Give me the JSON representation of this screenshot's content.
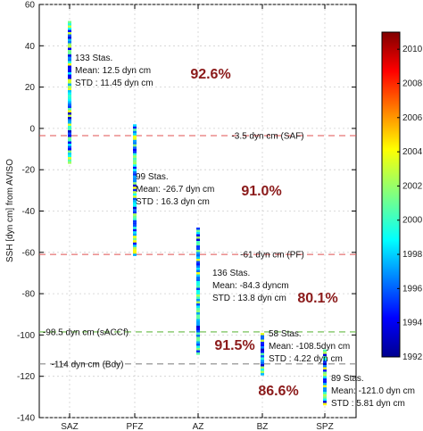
{
  "chart_data": {
    "type": "scatter",
    "ylabel": "SSH [dyn cm] from AVISO",
    "ylim": [
      -140,
      60
    ],
    "y_ticks": [
      60,
      40,
      20,
      0,
      -20,
      -40,
      -60,
      -80,
      -100,
      -120,
      -140
    ],
    "categories": [
      "SAZ",
      "PFZ",
      "AZ",
      "BZ",
      "SPZ"
    ],
    "grid": true,
    "zones": [
      {
        "name": "SAZ",
        "ymin": -17,
        "ymax": 52
      },
      {
        "name": "PFZ",
        "ymin": -61,
        "ymax": 2
      },
      {
        "name": "AZ",
        "ymin": -109,
        "ymax": -48
      },
      {
        "name": "BZ",
        "ymin": -119,
        "ymax": -99
      },
      {
        "name": "SPZ",
        "ymin": -133,
        "ymax": -107
      }
    ],
    "reference_lines": [
      {
        "y": -3.5,
        "label": "-3.5 dyn cm (SAF)",
        "color": "#e05050"
      },
      {
        "y": -61,
        "label": "-61 dyn cm (PF)",
        "color": "#e05050"
      },
      {
        "y": -98.5,
        "label": "-98.5 dyn cm (sACCf)",
        "color": "#66bb44"
      },
      {
        "y": -114,
        "label": "-114 dyn cm (Bdy)",
        "color": "#888888"
      }
    ],
    "annotations": [
      {
        "zone": "SAZ",
        "lines": [
          "133 Stas.",
          "Mean: 12.5 dyn cm",
          "STD : 11.45 dyn cm"
        ],
        "percent": "92.6%"
      },
      {
        "zone": "PFZ",
        "lines": [
          "99 Stas.",
          "Mean: -26.7 dyn cm",
          "STD : 16.3 dyn cm"
        ],
        "percent": "91.0%"
      },
      {
        "zone": "AZ",
        "lines": [
          "136 Stas.",
          "Mean: -84.3 dyncm",
          "STD : 13.8 dyn cm"
        ],
        "percent": "80.1%"
      },
      {
        "zone": "BZ",
        "lines": [
          "58 Stas.",
          "Mean: -108.5dyn cm",
          "STD : 4.22 dyn cm"
        ],
        "percent": "91.5%"
      },
      {
        "zone": "SPZ",
        "lines": [
          "89 Stas.",
          "Mean: -121.0 dyn cm",
          "STD : 5.81 dyn cm"
        ],
        "percent": "86.6%"
      }
    ],
    "colorbar": {
      "min": 1992,
      "max": 2011,
      "tick_labels": [
        "2010",
        "2008",
        "2006",
        "2004",
        "2002",
        "2000",
        "1998",
        "1996",
        "1994",
        "1992"
      ],
      "tick_values": [
        2010,
        2008,
        2006,
        2004,
        2002,
        2000,
        1998,
        1996,
        1994,
        1992
      ],
      "colormap": "jet"
    }
  }
}
